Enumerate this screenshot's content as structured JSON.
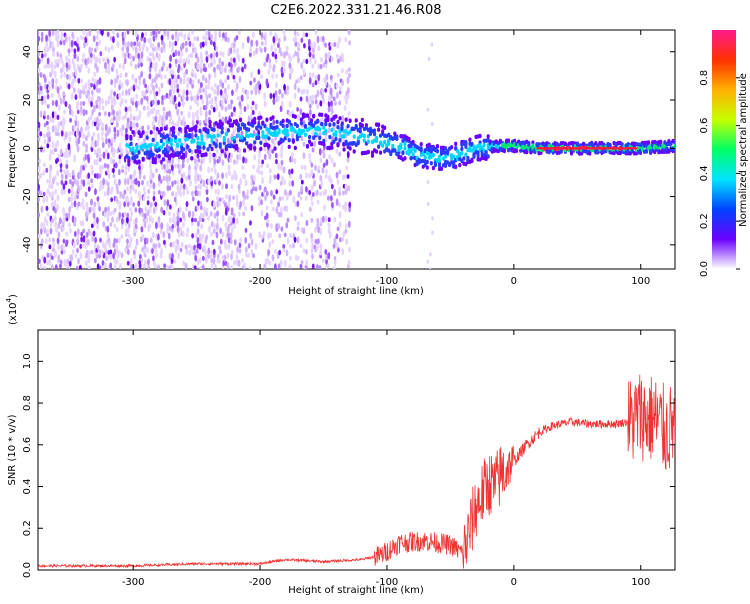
{
  "title": "C2E6.2022.331.21.46.R08",
  "chart_data": [
    {
      "type": "heatmap",
      "xlabel": "Height of straight line (km)",
      "ylabel": "Frequency (Hz)",
      "xlim": [
        -375,
        127
      ],
      "ylim": [
        -50,
        49
      ],
      "x_ticks": [
        -300,
        -200,
        -100,
        0,
        100
      ],
      "y_ticks": [
        -40,
        -20,
        0,
        20,
        40
      ],
      "colorbar": {
        "label": "Normalized spectral amplitude",
        "range": [
          0,
          1
        ],
        "ticks": [
          "0.0",
          "0.2",
          "0.4",
          "0.6",
          "0.8"
        ],
        "tick_values": [
          0.0,
          0.2,
          0.4,
          0.6,
          0.8
        ],
        "colors": [
          "#ffffff",
          "#6a00ff",
          "#0044ff",
          "#00e5ff",
          "#00ff66",
          "#c6ff00",
          "#ffb000",
          "#ff3000",
          "#ff1a8c"
        ]
      },
      "ridge": [
        {
          "x": -300,
          "y": 0
        },
        {
          "x": -250,
          "y": 3
        },
        {
          "x": -210,
          "y": 6
        },
        {
          "x": -180,
          "y": 7
        },
        {
          "x": -150,
          "y": 7
        },
        {
          "x": -120,
          "y": 5
        },
        {
          "x": -100,
          "y": 2
        },
        {
          "x": -85,
          "y": 0
        },
        {
          "x": -75,
          "y": -3
        },
        {
          "x": -60,
          "y": -4
        },
        {
          "x": -50,
          "y": -4
        },
        {
          "x": -40,
          "y": -2
        },
        {
          "x": -30,
          "y": 0
        },
        {
          "x": -15,
          "y": 1
        },
        {
          "x": 0,
          "y": 1
        },
        {
          "x": 20,
          "y": 0
        },
        {
          "x": 60,
          "y": 0
        },
        {
          "x": 100,
          "y": 0
        },
        {
          "x": 127,
          "y": 1
        }
      ]
    },
    {
      "type": "line",
      "xlabel": "Height of straight line (km)",
      "ylabel": "SNR (10 * v/v)",
      "multiplier": "(x10",
      "multiplier_exp": "4",
      "multiplier_close": ")",
      "xlim": [
        -375,
        127
      ],
      "ylim": [
        0,
        1.15
      ],
      "x_ticks": [
        -300,
        -200,
        -100,
        0,
        100
      ],
      "y_ticks": [
        "0.0",
        "0.2",
        "0.4",
        "0.6",
        "0.8",
        "1.0"
      ],
      "y_tick_values": [
        0.0,
        0.2,
        0.4,
        0.6,
        0.8,
        1.0
      ],
      "color": "#ee3333",
      "series": [
        {
          "x": -375,
          "y": 0.02
        },
        {
          "x": -300,
          "y": 0.02
        },
        {
          "x": -250,
          "y": 0.03
        },
        {
          "x": -200,
          "y": 0.03
        },
        {
          "x": -180,
          "y": 0.05
        },
        {
          "x": -150,
          "y": 0.04
        },
        {
          "x": -120,
          "y": 0.05
        },
        {
          "x": -105,
          "y": 0.07
        },
        {
          "x": -90,
          "y": 0.13
        },
        {
          "x": -70,
          "y": 0.14
        },
        {
          "x": -60,
          "y": 0.13
        },
        {
          "x": -50,
          "y": 0.12
        },
        {
          "x": -40,
          "y": 0.08
        },
        {
          "x": -35,
          "y": 0.18
        },
        {
          "x": -30,
          "y": 0.3
        },
        {
          "x": -25,
          "y": 0.36
        },
        {
          "x": -20,
          "y": 0.42
        },
        {
          "x": -15,
          "y": 0.4
        },
        {
          "x": -10,
          "y": 0.46
        },
        {
          "x": -5,
          "y": 0.49
        },
        {
          "x": 0,
          "y": 0.52
        },
        {
          "x": 10,
          "y": 0.6
        },
        {
          "x": 20,
          "y": 0.66
        },
        {
          "x": 30,
          "y": 0.69
        },
        {
          "x": 45,
          "y": 0.71
        },
        {
          "x": 60,
          "y": 0.7
        },
        {
          "x": 80,
          "y": 0.7
        },
        {
          "x": 90,
          "y": 0.71
        },
        {
          "x": 95,
          "y": 0.72
        },
        {
          "x": 100,
          "y": 0.75
        },
        {
          "x": 105,
          "y": 0.72
        },
        {
          "x": 110,
          "y": 0.73
        },
        {
          "x": 115,
          "y": 0.7
        },
        {
          "x": 120,
          "y": 0.66
        },
        {
          "x": 127,
          "y": 0.7
        }
      ]
    }
  ]
}
